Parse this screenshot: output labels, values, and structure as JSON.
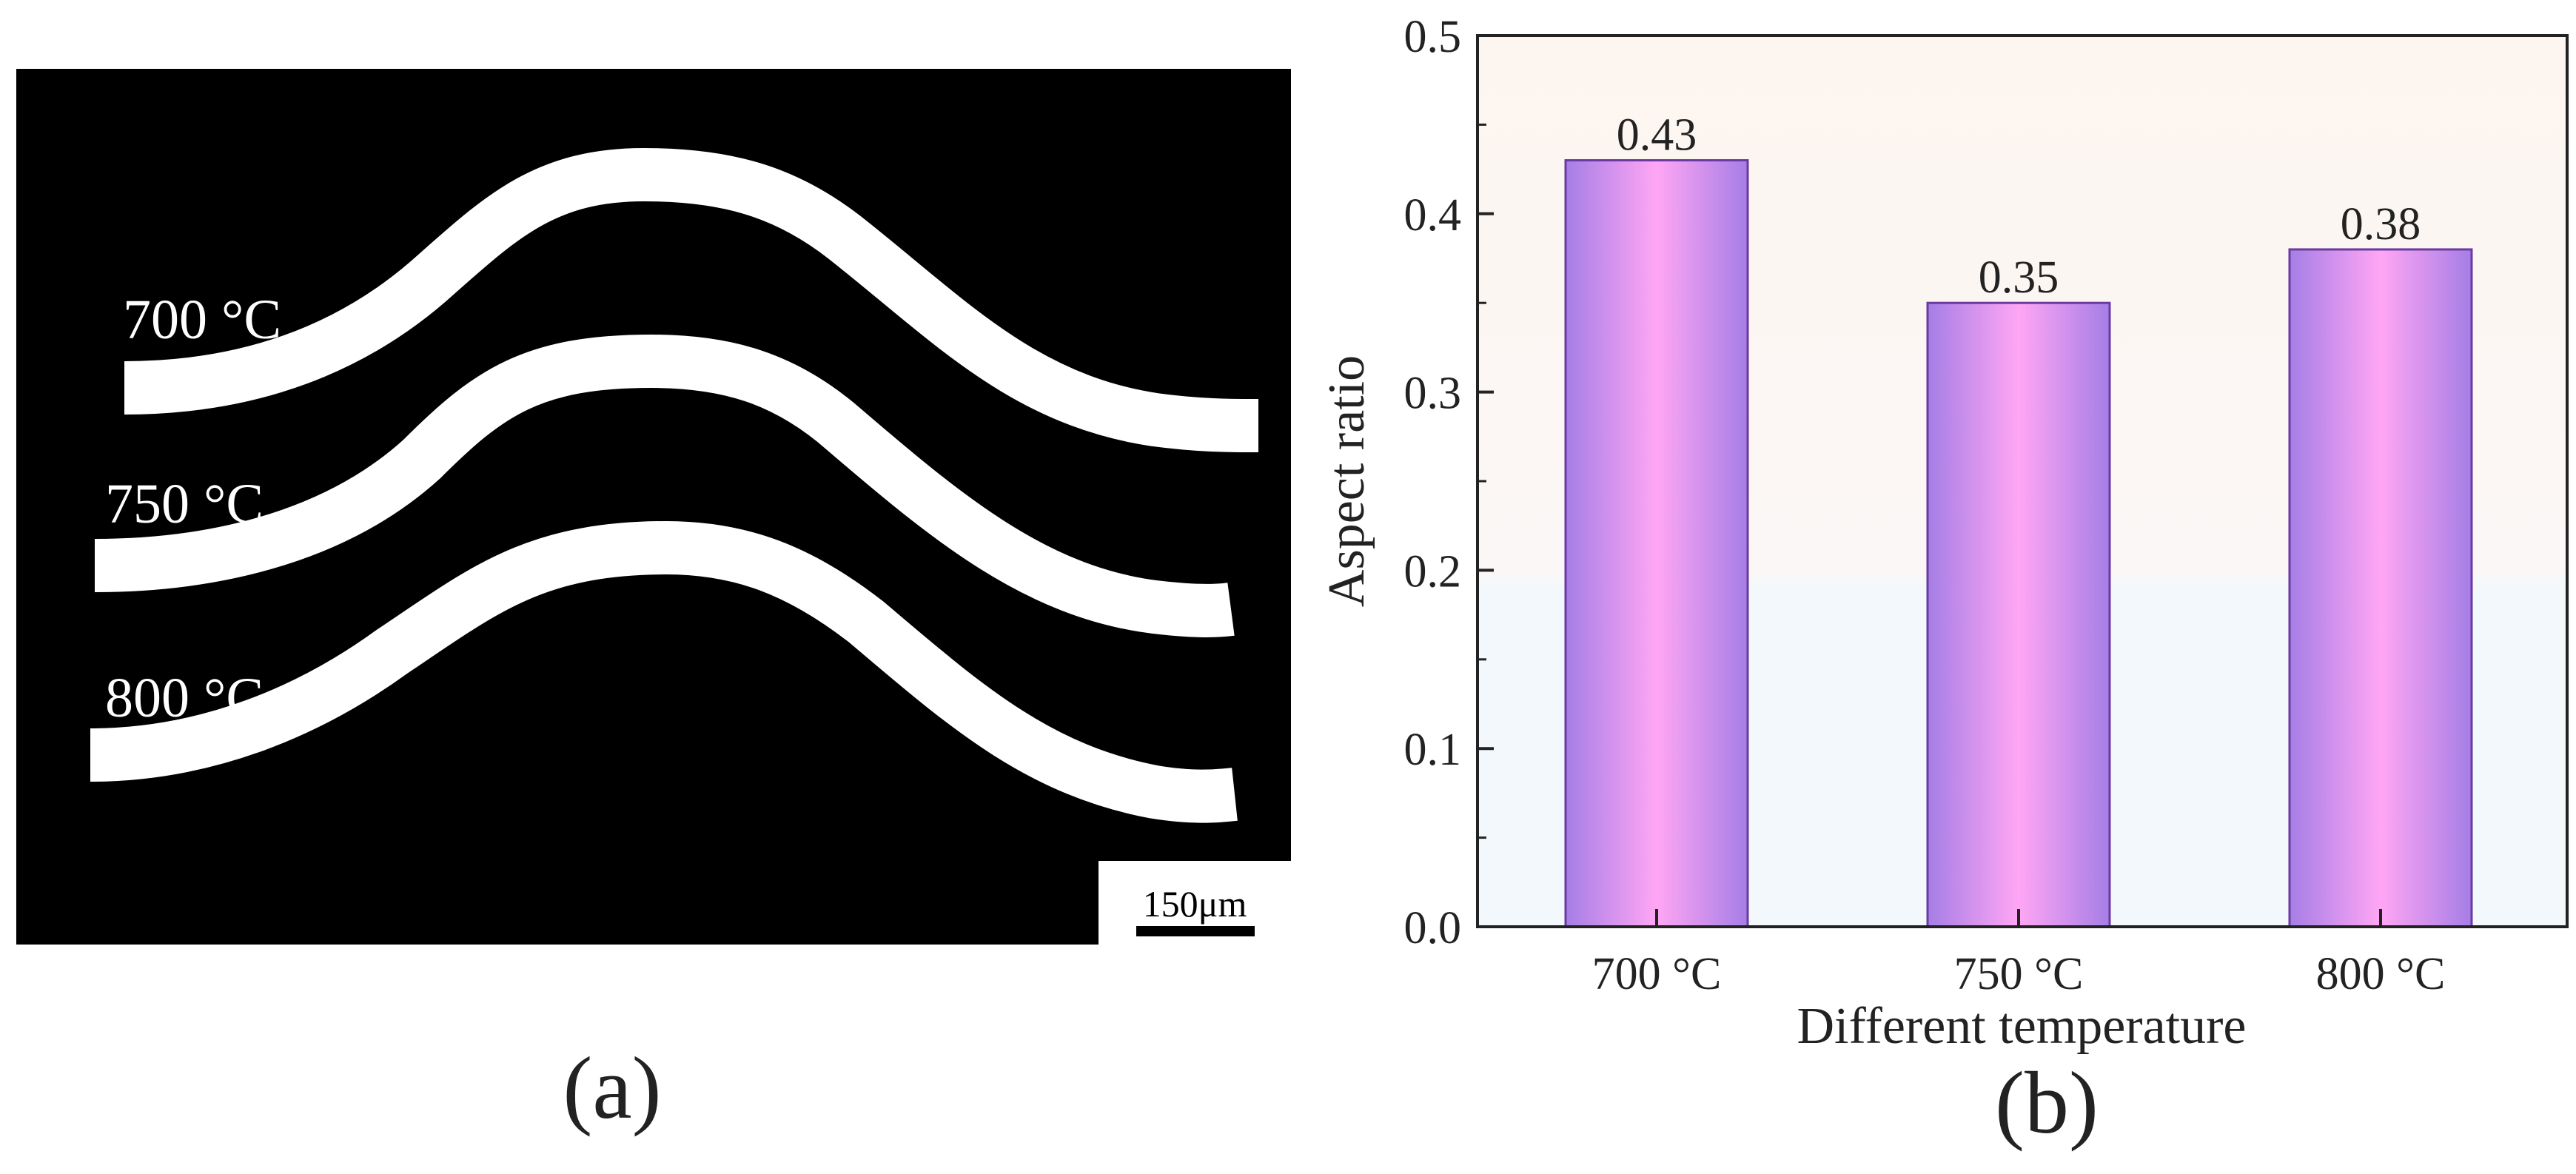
{
  "panel_a": {
    "caption": "(a)",
    "labels": [
      "700 °C",
      "750 °C",
      "800 °C"
    ],
    "scale_bar": "150μm"
  },
  "panel_b": {
    "caption": "(b)"
  },
  "chart_data": {
    "type": "bar",
    "categories": [
      "700 °C",
      "750 °C",
      "800 °C"
    ],
    "values": [
      0.43,
      0.35,
      0.38
    ],
    "data_labels": [
      "0.43",
      "0.35",
      "0.38"
    ],
    "xlabel": "Different temperature",
    "ylabel": "Aspect ratio",
    "ylim": [
      0,
      0.5
    ],
    "yticks": [
      0.0,
      0.1,
      0.2,
      0.3,
      0.4,
      0.5
    ],
    "ytick_labels": [
      "0.0",
      "0.1",
      "0.2",
      "0.3",
      "0.4",
      "0.5"
    ],
    "grid": false,
    "colors": {
      "bar_center": "#ffa6f4",
      "bar_edge": "#a57ee6",
      "bar_outline": "#6a3aa0",
      "bg_top": "#fdf6f0",
      "bg_bottom": "#f3f8fc"
    }
  }
}
